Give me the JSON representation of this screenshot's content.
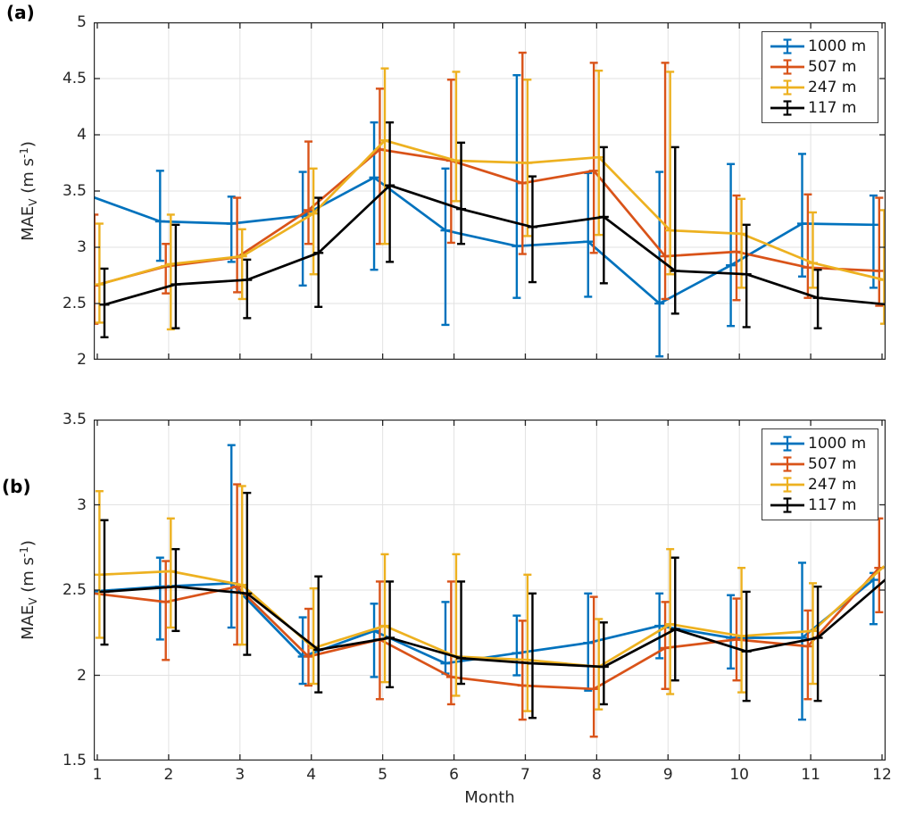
{
  "chart_data": [
    {
      "id": "a",
      "type": "line",
      "panel_label": "(a)",
      "ylabel": {
        "base": "MAE",
        "sub": "V",
        "mid": " (m s",
        "sup": "-1",
        "end": ")"
      },
      "x": [
        1,
        2,
        3,
        4,
        5,
        6,
        7,
        8,
        9,
        10,
        11,
        12
      ],
      "xlim": [
        0.95,
        12.05
      ],
      "ylim": [
        2,
        5
      ],
      "yticks": [
        2,
        2.5,
        3,
        3.5,
        4,
        4.5,
        5
      ],
      "ytick_labels": [
        "2",
        "2.5",
        "3",
        "3.5",
        "4",
        "4.5",
        "5"
      ],
      "grid": true,
      "legend_position": "top-right",
      "series": [
        {
          "name": "1000 m",
          "color": "#0072BD",
          "offset": -0.12,
          "values": [
            3.46,
            3.23,
            3.21,
            3.28,
            3.62,
            3.15,
            3.01,
            3.05,
            2.5,
            2.84,
            3.21,
            3.2
          ],
          "err_lo": [
            null,
            2.88,
            2.87,
            2.66,
            2.8,
            2.31,
            2.55,
            2.56,
            2.03,
            2.3,
            2.74,
            2.64
          ],
          "err_hi": [
            null,
            3.68,
            3.45,
            3.67,
            4.11,
            3.7,
            4.53,
            3.66,
            3.67,
            3.74,
            3.83,
            3.46
          ]
        },
        {
          "name": "507 m",
          "color": "#D95319",
          "offset": -0.04,
          "values": [
            2.66,
            2.83,
            2.91,
            3.33,
            3.87,
            3.77,
            3.57,
            3.68,
            2.92,
            2.96,
            2.82,
            2.79
          ],
          "err_lo": [
            2.32,
            2.59,
            2.6,
            3.03,
            3.03,
            3.04,
            2.94,
            2.95,
            2.54,
            2.53,
            2.55,
            2.48
          ],
          "err_hi": [
            3.29,
            3.03,
            3.44,
            3.94,
            4.41,
            4.49,
            4.73,
            4.64,
            4.64,
            3.46,
            3.47,
            3.44
          ]
        },
        {
          "name": "247 m",
          "color": "#EDB120",
          "offset": 0.03,
          "values": [
            2.67,
            2.85,
            2.92,
            3.3,
            3.95,
            3.77,
            3.75,
            3.8,
            3.15,
            3.12,
            2.86,
            2.71
          ],
          "err_lo": [
            2.33,
            2.27,
            2.54,
            2.76,
            3.03,
            3.41,
            3.1,
            3.11,
            2.76,
            2.64,
            2.64,
            2.32
          ],
          "err_hi": [
            3.21,
            3.29,
            3.16,
            3.7,
            4.59,
            4.56,
            4.49,
            4.57,
            4.56,
            3.43,
            3.31,
            3.33
          ]
        },
        {
          "name": "117 m",
          "color": "#000000",
          "offset": 0.1,
          "values": [
            2.49,
            2.67,
            2.71,
            2.95,
            3.55,
            3.34,
            3.18,
            3.27,
            2.79,
            2.76,
            2.55,
            2.49
          ],
          "err_lo": [
            2.2,
            2.28,
            2.37,
            2.47,
            2.87,
            3.03,
            2.69,
            2.68,
            2.41,
            2.29,
            2.28,
            null
          ],
          "err_hi": [
            2.81,
            3.2,
            2.89,
            3.44,
            4.11,
            3.93,
            3.63,
            3.89,
            3.89,
            3.2,
            2.8,
            null
          ]
        }
      ]
    },
    {
      "id": "b",
      "type": "line",
      "panel_label": "(b)",
      "ylabel": {
        "base": "MAE",
        "sub": "V",
        "mid": " (m s",
        "sup": "-1",
        "end": ")"
      },
      "xlabel": "Month",
      "x": [
        1,
        2,
        3,
        4,
        5,
        6,
        7,
        8,
        9,
        10,
        11,
        12
      ],
      "xlim": [
        0.95,
        12.05
      ],
      "ylim": [
        1.5,
        3.5
      ],
      "yticks": [
        1.5,
        2,
        2.5,
        3,
        3.5
      ],
      "ytick_labels": [
        "1.5",
        "2",
        "2.5",
        "3",
        "3.5"
      ],
      "xtick_labels": [
        "1",
        "2",
        "3",
        "4",
        "5",
        "6",
        "7",
        "8",
        "9",
        "10",
        "11",
        "12"
      ],
      "grid": true,
      "legend_position": "top-right",
      "series": [
        {
          "name": "1000 m",
          "color": "#0072BD",
          "offset": -0.12,
          "values": [
            2.49,
            2.52,
            2.54,
            2.11,
            2.26,
            2.07,
            2.13,
            2.19,
            2.29,
            2.22,
            2.22,
            2.56
          ],
          "err_lo": [
            null,
            2.21,
            2.28,
            1.95,
            1.99,
            2.01,
            2.0,
            1.91,
            2.1,
            2.04,
            1.74,
            2.3
          ],
          "err_hi": [
            null,
            2.69,
            3.35,
            2.34,
            2.42,
            2.43,
            2.35,
            2.48,
            2.48,
            2.47,
            2.66,
            2.6
          ]
        },
        {
          "name": "507 m",
          "color": "#D95319",
          "offset": -0.04,
          "values": [
            2.48,
            2.43,
            2.52,
            2.11,
            2.21,
            1.99,
            1.94,
            1.92,
            2.16,
            2.21,
            2.17,
            2.63
          ],
          "err_lo": [
            null,
            2.09,
            2.18,
            1.94,
            1.86,
            1.83,
            1.74,
            1.64,
            1.92,
            1.97,
            1.86,
            2.37
          ],
          "err_hi": [
            null,
            2.67,
            3.12,
            2.39,
            2.55,
            2.55,
            2.32,
            2.46,
            2.43,
            2.45,
            2.38,
            2.92
          ]
        },
        {
          "name": "247 m",
          "color": "#EDB120",
          "offset": 0.03,
          "values": [
            2.59,
            2.61,
            2.53,
            2.16,
            2.29,
            2.11,
            2.09,
            2.05,
            2.3,
            2.23,
            2.26,
            2.64
          ],
          "err_lo": [
            2.22,
            2.28,
            2.18,
            1.95,
            1.96,
            1.88,
            1.79,
            1.8,
            1.89,
            1.9,
            1.95,
            null
          ],
          "err_hi": [
            3.08,
            2.92,
            3.11,
            2.51,
            2.71,
            2.71,
            2.59,
            2.33,
            2.74,
            2.63,
            2.54,
            null
          ]
        },
        {
          "name": "117 m",
          "color": "#000000",
          "offset": 0.1,
          "values": [
            2.49,
            2.52,
            2.48,
            2.15,
            2.22,
            2.1,
            2.07,
            2.05,
            2.27,
            2.14,
            2.22,
            2.58
          ],
          "err_lo": [
            2.18,
            2.26,
            2.12,
            1.9,
            1.93,
            1.95,
            1.75,
            1.83,
            1.97,
            1.85,
            1.85,
            null
          ],
          "err_hi": [
            2.91,
            2.74,
            3.07,
            2.58,
            2.55,
            2.55,
            2.48,
            2.31,
            2.69,
            2.49,
            2.52,
            null
          ]
        }
      ]
    }
  ]
}
